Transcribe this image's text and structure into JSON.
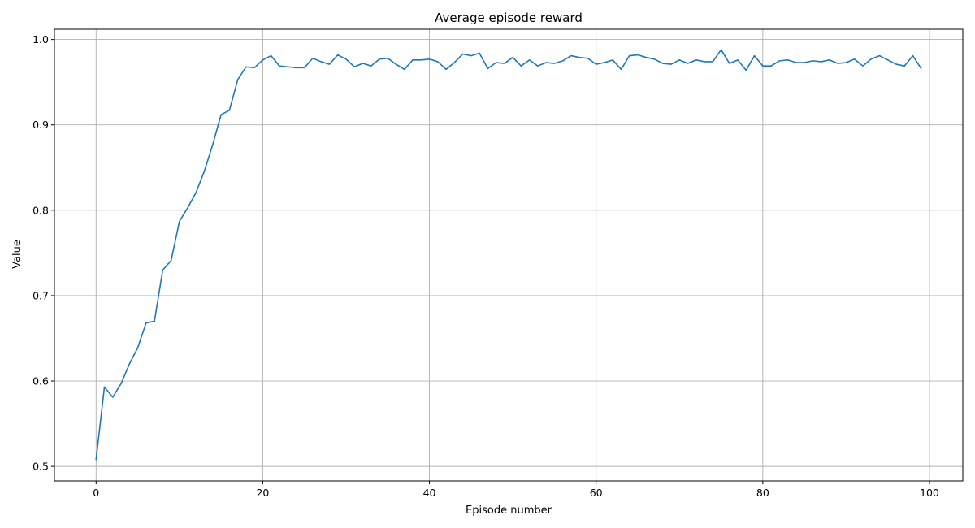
{
  "chart_data": {
    "type": "line",
    "title": "Average episode reward",
    "xlabel": "Episode number",
    "ylabel": "Value",
    "xlim": [
      -5,
      104
    ],
    "ylim": [
      0.483,
      1.012
    ],
    "xticks": [
      0,
      20,
      40,
      60,
      80,
      100
    ],
    "yticks": [
      0.5,
      0.6,
      0.7,
      0.8,
      0.9,
      1.0
    ],
    "grid": true,
    "color": "#1f77b4",
    "series": [
      {
        "x": [
          0,
          1,
          2,
          3,
          4,
          5,
          6,
          7,
          8,
          9,
          10,
          11,
          12,
          13,
          14,
          15,
          16,
          17,
          18,
          19,
          20,
          21,
          22,
          23,
          24,
          25,
          26,
          27,
          28,
          29,
          30,
          31,
          32,
          33,
          34,
          35,
          36,
          37,
          38,
          39,
          40,
          41,
          42,
          43,
          44,
          45,
          46,
          47,
          48,
          49,
          50,
          51,
          52,
          53,
          54,
          55,
          56,
          57,
          58,
          59,
          60,
          61,
          62,
          63,
          64,
          65,
          66,
          67,
          68,
          69,
          70,
          71,
          72,
          73,
          74,
          75,
          76,
          77,
          78,
          79,
          80,
          81,
          82,
          83,
          84,
          85,
          86,
          87,
          88,
          89,
          90,
          91,
          92,
          93,
          94,
          95,
          96,
          97,
          98,
          99
        ],
        "values": [
          0.508,
          0.593,
          0.581,
          0.597,
          0.62,
          0.639,
          0.668,
          0.67,
          0.73,
          0.741,
          0.787,
          0.803,
          0.821,
          0.846,
          0.877,
          0.912,
          0.917,
          0.953,
          0.968,
          0.967,
          0.976,
          0.981,
          0.969,
          0.968,
          0.967,
          0.967,
          0.978,
          0.974,
          0.971,
          0.982,
          0.977,
          0.968,
          0.972,
          0.969,
          0.977,
          0.978,
          0.971,
          0.965,
          0.976,
          0.976,
          0.977,
          0.974,
          0.965,
          0.973,
          0.983,
          0.981,
          0.984,
          0.966,
          0.973,
          0.972,
          0.979,
          0.969,
          0.976,
          0.969,
          0.973,
          0.972,
          0.975,
          0.981,
          0.979,
          0.978,
          0.971,
          0.973,
          0.976,
          0.965,
          0.981,
          0.982,
          0.979,
          0.977,
          0.972,
          0.971,
          0.976,
          0.972,
          0.976,
          0.974,
          0.974,
          0.988,
          0.972,
          0.976,
          0.964,
          0.981,
          0.969,
          0.969,
          0.975,
          0.976,
          0.973,
          0.973,
          0.975,
          0.974,
          0.976,
          0.972,
          0.973,
          0.977,
          0.969,
          0.977,
          0.981,
          0.976,
          0.971,
          0.969,
          0.981,
          0.966
        ]
      }
    ]
  }
}
